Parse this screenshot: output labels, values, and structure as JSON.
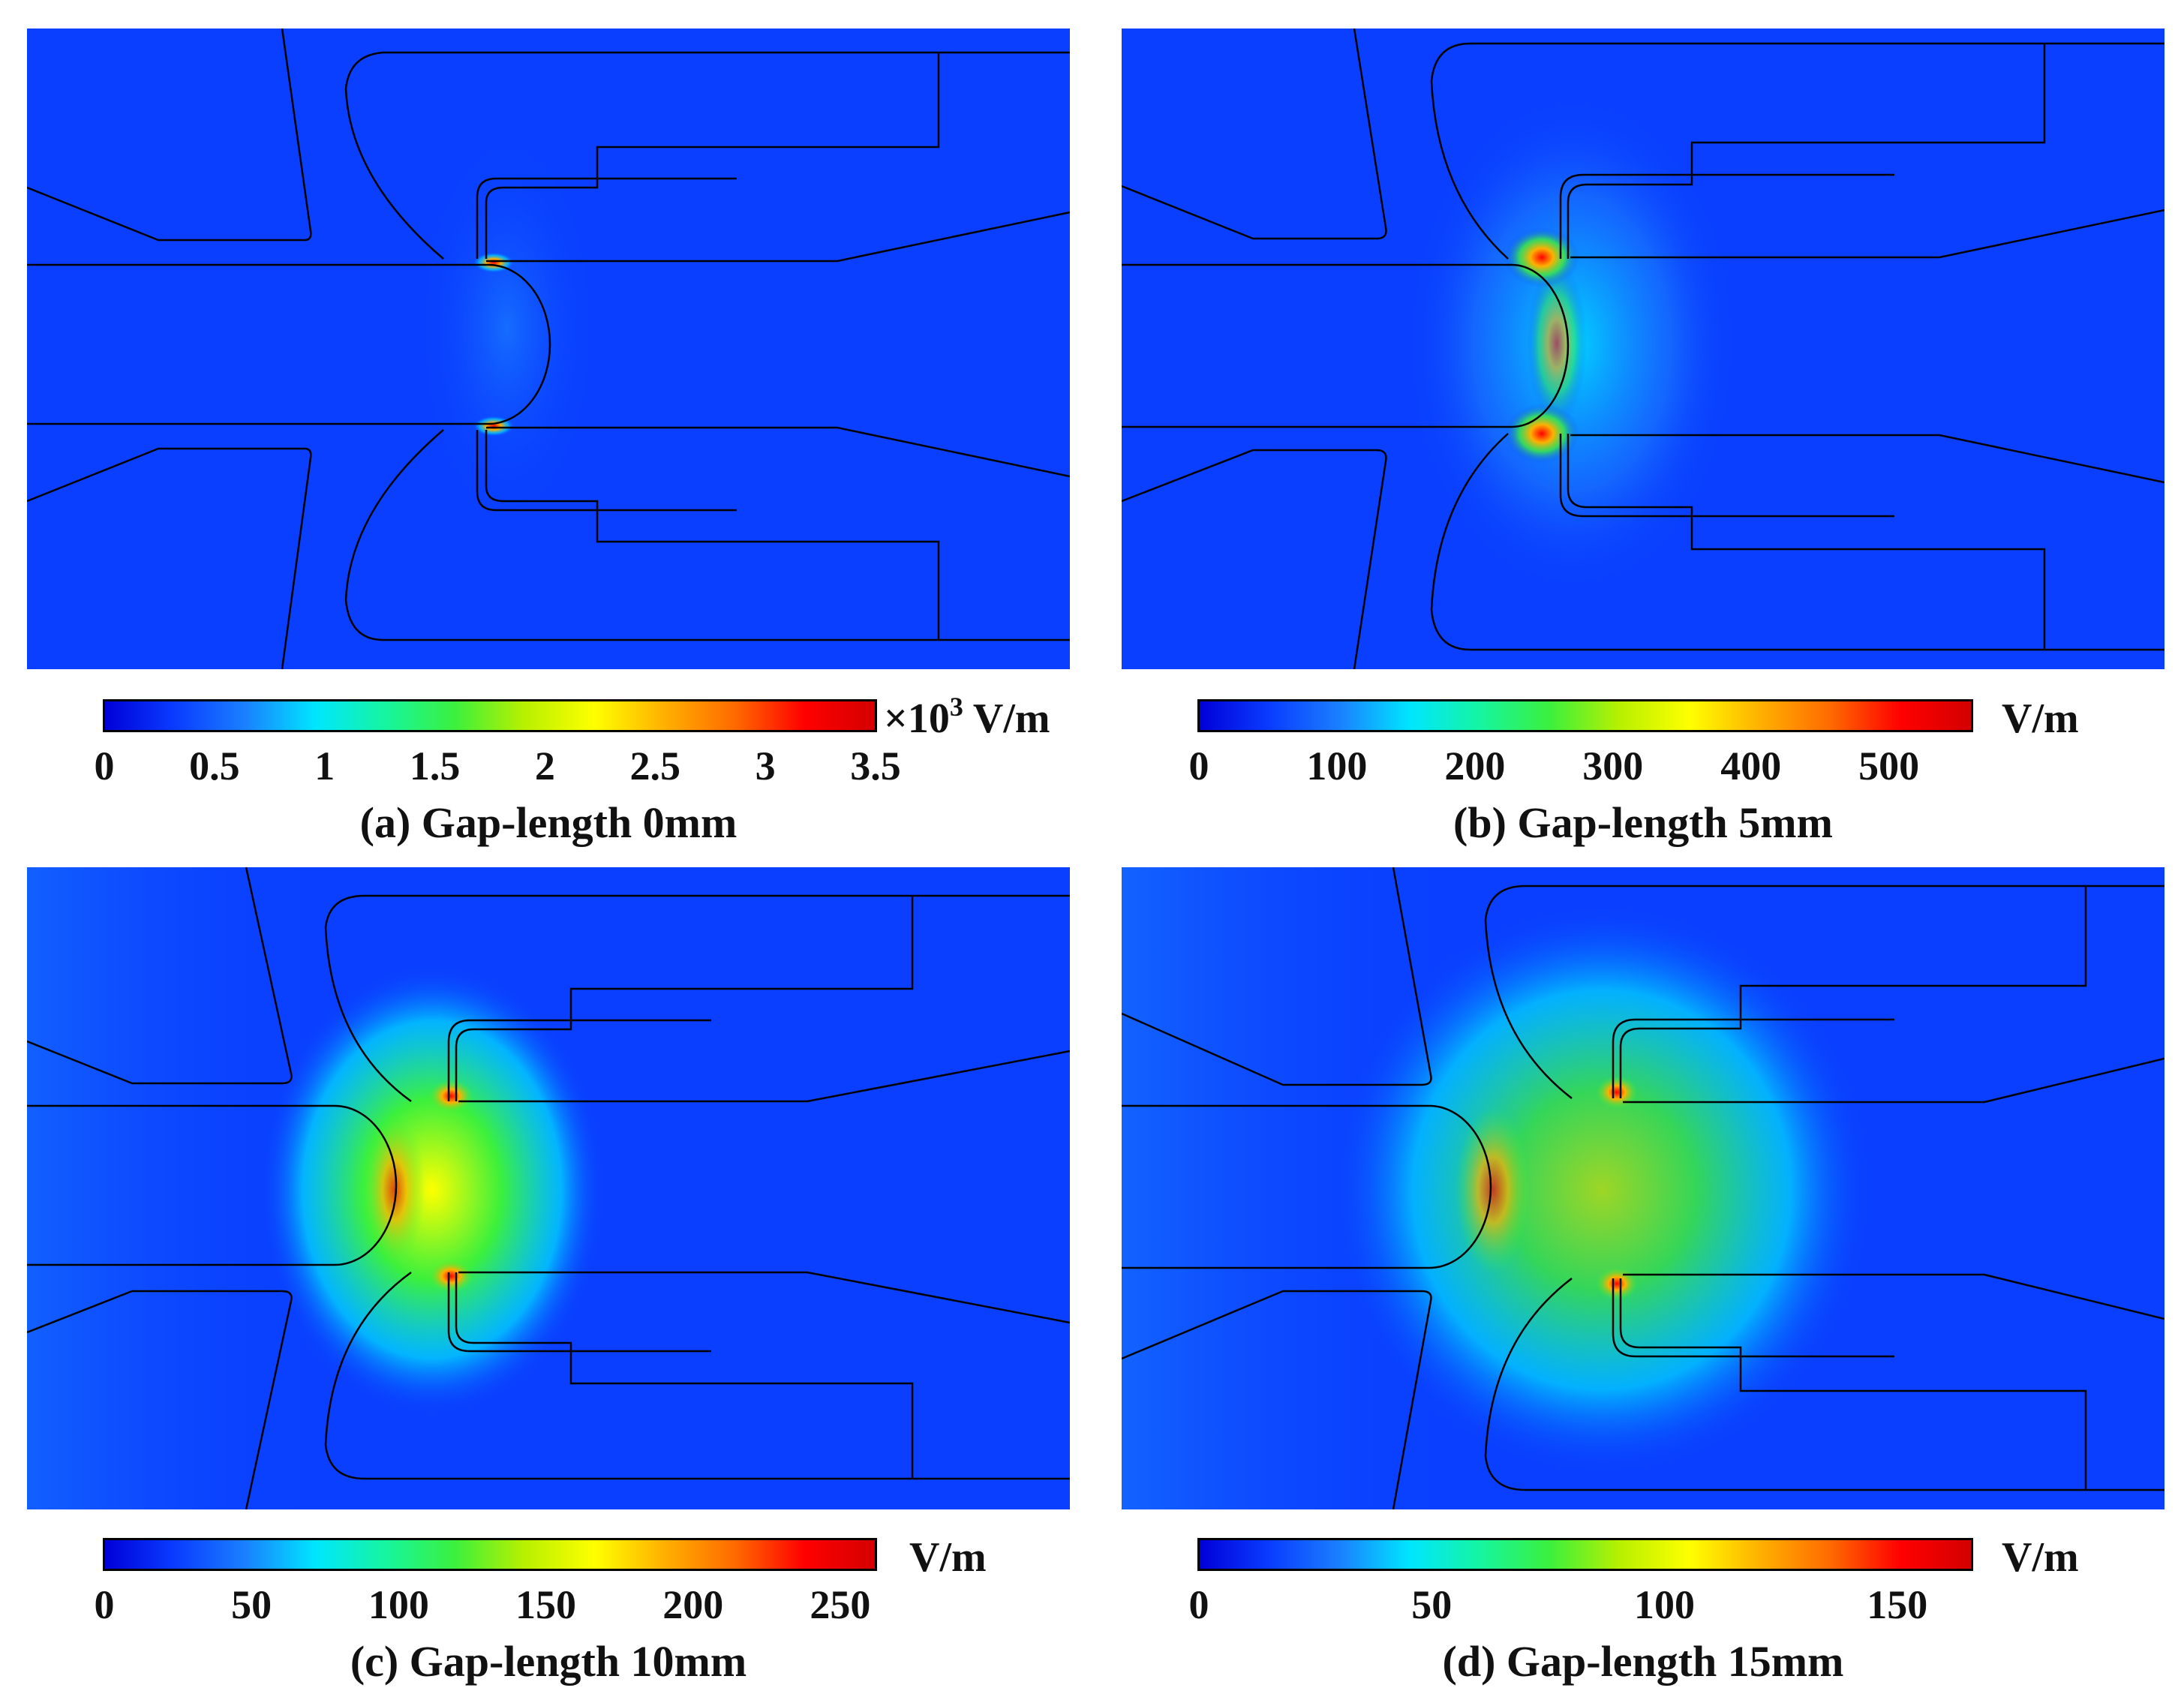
{
  "colormap": [
    "#0000d8",
    "#0a3cff",
    "#1a80ff",
    "#00e6ff",
    "#16f5a0",
    "#3cf03c",
    "#b8f000",
    "#ffff00",
    "#ffb000",
    "#ff6a00",
    "#ff0000",
    "#d40000"
  ],
  "background_color": "#0a3fff",
  "panels": [
    {
      "caption": "(a) Gap-length 0mm",
      "unit_prefix": "×10",
      "unit_exp": "3",
      "unit": " V/m",
      "ticks": [
        "0",
        "0.5",
        "1",
        "1.5",
        "2",
        "2.5",
        "3",
        "3.5"
      ],
      "tick_values": [
        0,
        0.5,
        1,
        1.5,
        2,
        2.5,
        3,
        3.5
      ],
      "range": [
        0,
        3.5
      ]
    },
    {
      "caption": "(b) Gap-length 5mm",
      "unit_prefix": "",
      "unit_exp": "",
      "unit": "V/m",
      "ticks": [
        "0",
        "100",
        "200",
        "300",
        "400",
        "500"
      ],
      "tick_values": [
        0,
        100,
        200,
        300,
        400,
        500
      ],
      "range": [
        0,
        560
      ]
    },
    {
      "caption": "(c) Gap-length 10mm",
      "unit_prefix": "",
      "unit_exp": "",
      "unit": "V/m",
      "ticks": [
        "0",
        "50",
        "100",
        "150",
        "200",
        "250"
      ],
      "tick_values": [
        0,
        50,
        100,
        150,
        200,
        250
      ],
      "range": [
        0,
        262
      ]
    },
    {
      "caption": "(d) Gap-length 15mm",
      "unit_prefix": "",
      "unit_exp": "",
      "unit": "V/m",
      "ticks": [
        "0",
        "50",
        "100",
        "150"
      ],
      "tick_values": [
        0,
        50,
        100,
        150
      ],
      "range": [
        0,
        166
      ]
    }
  ]
}
